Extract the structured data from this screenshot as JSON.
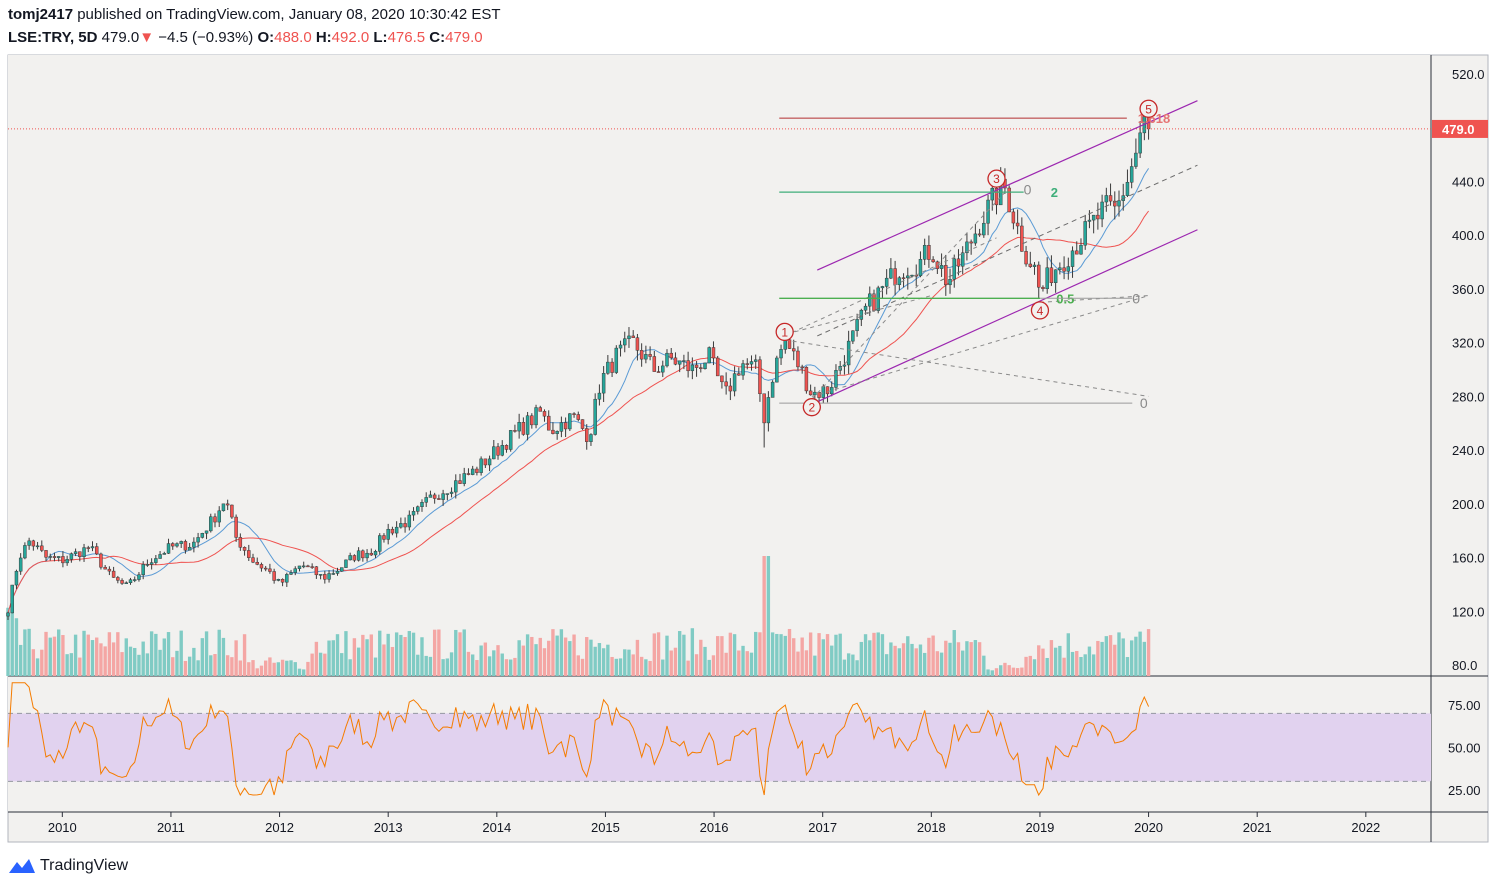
{
  "header": {
    "author": "tomj2417",
    "published_text": "published on TradingView.com, January 08, 2020 10:30:42 EST",
    "symbol": "LSE:TRY, 5D",
    "last": "479.0",
    "arrow": "▼",
    "change": "−4.5 (−0.93%)",
    "open_label": "O:",
    "open": "488.0",
    "high_label": "H:",
    "high": "492.0",
    "low_label": "L:",
    "low": "476.5",
    "close_label": "C:",
    "close": "479.0"
  },
  "footer": {
    "brand": "TradingView"
  },
  "colors": {
    "up": "#26a69a",
    "down": "#ef5350",
    "channel": "#9c27b0",
    "fib_green": "#4caf50",
    "fib_red": "#e57373",
    "rsi": "#f57c00",
    "rsi_band": "#e1d2ef",
    "price_line": "#ef5350",
    "ma_red": "#ef5350",
    "ma_blue": "#5b9bd5"
  },
  "chart_data": {
    "type": "candlestick",
    "price_axis": {
      "ticks": [
        "80.0",
        "120.0",
        "160.0",
        "200.0",
        "240.0",
        "280.0",
        "320.0",
        "360.0",
        "400.0",
        "440.0",
        "480.0",
        "520.0"
      ],
      "range": [
        72,
        534
      ],
      "last_price_label": "479.0"
    },
    "rsi_axis": {
      "ticks": [
        "25.00",
        "50.00",
        "75.00"
      ],
      "range": [
        12,
        92
      ],
      "band": [
        30,
        70
      ]
    },
    "x_axis": {
      "labels": [
        "2010",
        "2011",
        "2012",
        "2013",
        "2014",
        "2015",
        "2016",
        "2017",
        "2018",
        "2019",
        "2020",
        "2021",
        "2022"
      ],
      "range": [
        2009.5,
        2022.6
      ]
    },
    "price_path": [
      [
        2009.5,
        122
      ],
      [
        2009.6,
        160
      ],
      [
        2009.7,
        173
      ],
      [
        2009.85,
        160
      ],
      [
        2010.0,
        158
      ],
      [
        2010.25,
        168
      ],
      [
        2010.45,
        145
      ],
      [
        2010.6,
        138
      ],
      [
        2010.8,
        158
      ],
      [
        2011.0,
        168
      ],
      [
        2011.2,
        170
      ],
      [
        2011.4,
        190
      ],
      [
        2011.5,
        204
      ],
      [
        2011.6,
        175
      ],
      [
        2011.75,
        158
      ],
      [
        2011.9,
        150
      ],
      [
        2012.0,
        140
      ],
      [
        2012.2,
        155
      ],
      [
        2012.4,
        145
      ],
      [
        2012.55,
        152
      ],
      [
        2012.7,
        162
      ],
      [
        2012.85,
        165
      ],
      [
        2013.0,
        180
      ],
      [
        2013.2,
        188
      ],
      [
        2013.4,
        205
      ],
      [
        2013.6,
        215
      ],
      [
        2013.8,
        225
      ],
      [
        2014.0,
        240
      ],
      [
        2014.2,
        255
      ],
      [
        2014.4,
        268
      ],
      [
        2014.5,
        255
      ],
      [
        2014.7,
        265
      ],
      [
        2014.85,
        250
      ],
      [
        2014.95,
        290
      ],
      [
        2015.1,
        310
      ],
      [
        2015.25,
        320
      ],
      [
        2015.45,
        300
      ],
      [
        2015.6,
        308
      ],
      [
        2015.8,
        300
      ],
      [
        2015.95,
        310
      ],
      [
        2016.1,
        280
      ],
      [
        2016.25,
        305
      ],
      [
        2016.4,
        300
      ],
      [
        2016.45,
        260
      ],
      [
        2016.55,
        300
      ],
      [
        2016.65,
        322
      ],
      [
        2016.8,
        300
      ],
      [
        2016.9,
        282
      ],
      [
        2017.05,
        285
      ],
      [
        2017.2,
        310
      ],
      [
        2017.4,
        345
      ],
      [
        2017.55,
        360
      ],
      [
        2017.7,
        375
      ],
      [
        2017.9,
        380
      ],
      [
        2018.0,
        390
      ],
      [
        2018.15,
        365
      ],
      [
        2018.3,
        385
      ],
      [
        2018.45,
        410
      ],
      [
        2018.6,
        430
      ],
      [
        2018.68,
        435
      ],
      [
        2018.85,
        390
      ],
      [
        2018.95,
        375
      ],
      [
        2019.0,
        356
      ],
      [
        2019.1,
        372
      ],
      [
        2019.25,
        385
      ],
      [
        2019.45,
        405
      ],
      [
        2019.6,
        420
      ],
      [
        2019.7,
        418
      ],
      [
        2019.8,
        440
      ],
      [
        2019.88,
        460
      ],
      [
        2019.95,
        484
      ],
      [
        2020.0,
        479
      ]
    ],
    "moving_averages": [
      "short MA (blue)",
      "long MA (red)"
    ],
    "annotations": {
      "waves": [
        {
          "label": "1",
          "x": 2016.65,
          "price": 328
        },
        {
          "label": "2",
          "x": 2016.9,
          "price": 272
        },
        {
          "label": "3",
          "x": 2018.6,
          "price": 442
        },
        {
          "label": "4",
          "x": 2019.0,
          "price": 344
        },
        {
          "label": "5",
          "x": 2020.0,
          "price": 494
        }
      ],
      "fib_levels": [
        {
          "label": "1.618",
          "price": 487,
          "color": "red"
        },
        {
          "label": "2",
          "price": 432,
          "color": "green"
        },
        {
          "label": "0.5",
          "price": 353,
          "color": "green"
        }
      ],
      "zero_labels": [
        "0",
        "0",
        "0"
      ],
      "channel": {
        "upper": [
          [
            2016.95,
            374
          ],
          [
            2020.45,
            500
          ]
        ],
        "lower": [
          [
            2016.95,
            276
          ],
          [
            2020.45,
            404
          ]
        ]
      }
    }
  }
}
